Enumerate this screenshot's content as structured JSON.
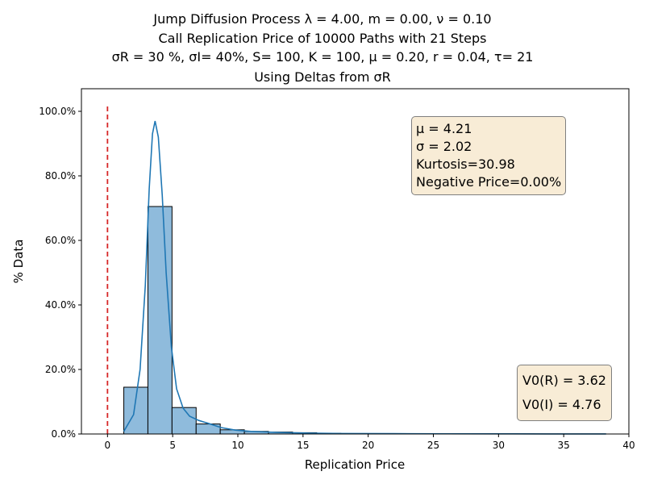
{
  "title": {
    "line1": "Jump Diffusion Process  λ =  4.00, m =  0.00, ν =  0.10",
    "line2": "Call Replication Price of 10000 Paths with 21 Steps",
    "line3": "σR = 30 %, σI= 40%, S= 100, K = 100, μ = 0.20, r = 0.04, τ= 21",
    "line4": "Using Deltas from σR"
  },
  "stats_box": {
    "mu": "μ = 4.21",
    "sigma": "σ = 2.02",
    "kurtosis": "Kurtosis=30.98",
    "negative": "Negative Price=0.00%"
  },
  "price_box": {
    "vr": "V0(R) = 3.62",
    "vi": "V0(I) = 4.76"
  },
  "colors": {
    "bar_fill": "#8fbbdc",
    "bar_edge": "#000000",
    "kde_line": "#1f77b4",
    "ref_line": "#d62728",
    "box_fill": "#f8ecd6"
  },
  "chart_data": {
    "type": "bar",
    "xlabel": "Replication Price",
    "ylabel": "% Data",
    "xlim": [
      -2,
      40
    ],
    "ylim": [
      0,
      1.07
    ],
    "x_ticks": [
      0,
      5,
      10,
      15,
      20,
      25,
      30,
      35,
      40
    ],
    "y_ticks": [
      0.0,
      0.2,
      0.4,
      0.6,
      0.8,
      1.0
    ],
    "y_tick_labels": [
      "0.0%",
      "20.0%",
      "40.0%",
      "60.0%",
      "80.0%",
      "100.0%"
    ],
    "bin_edges": [
      1.25,
      3.1,
      4.95,
      6.8,
      8.65,
      10.5,
      12.35,
      14.2,
      16.05,
      17.9,
      19.75,
      21.6,
      23.45,
      25.3,
      27.15,
      29.0,
      30.85,
      32.7,
      34.55,
      36.4,
      38.25
    ],
    "values": [
      0.145,
      0.705,
      0.082,
      0.031,
      0.013,
      0.008,
      0.006,
      0.004,
      0.002,
      0.001,
      0.001,
      0.0005,
      0.0005,
      0.0003,
      0.0003,
      0.0002,
      0.0002,
      0.0001,
      0.0001,
      0.0001
    ],
    "kde": {
      "x": [
        1.25,
        2.0,
        2.5,
        2.9,
        3.2,
        3.45,
        3.65,
        3.9,
        4.2,
        4.5,
        4.9,
        5.3,
        5.8,
        6.3,
        7.0,
        7.8,
        8.7,
        9.8,
        11.0,
        13.0,
        15.0,
        18.0,
        22.0,
        26.0,
        30.0,
        34.0,
        38.25
      ],
      "y": [
        0.008,
        0.06,
        0.2,
        0.46,
        0.76,
        0.93,
        0.97,
        0.92,
        0.74,
        0.5,
        0.27,
        0.14,
        0.08,
        0.055,
        0.042,
        0.032,
        0.02,
        0.012,
        0.008,
        0.005,
        0.003,
        0.0015,
        0.001,
        0.0006,
        0.0004,
        0.0002,
        0.0001
      ]
    },
    "reference_line_x": 0,
    "grid": false
  }
}
